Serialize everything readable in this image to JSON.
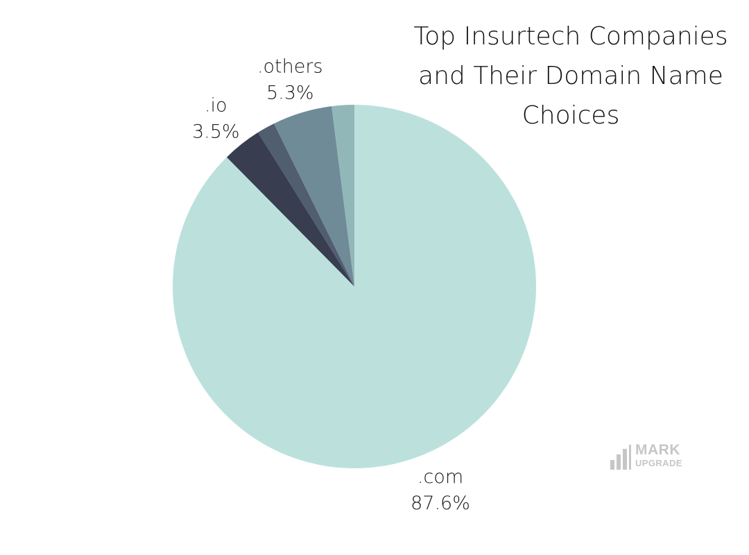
{
  "chart_data": {
    "type": "pie",
    "title_lines": [
      "Top Insurtech Companies",
      "and Their Domain Name",
      "Choices"
    ],
    "slices": [
      {
        "label": ".com",
        "value": 87.6,
        "value_text": "87.6%",
        "color": "#bce1dd",
        "show_label": true
      },
      {
        "label": ".io",
        "value": 3.5,
        "value_text": "3.5%",
        "color": "#383d50",
        "show_label": true
      },
      {
        "label": "",
        "value": 1.6,
        "value_text": "",
        "color": "#505e70",
        "show_label": false
      },
      {
        "label": ".others",
        "value": 5.3,
        "value_text": "5.3%",
        "color": "#6f8b97",
        "show_label": true
      },
      {
        "label": "",
        "value": 2.0,
        "value_text": "",
        "color": "#92b7b9",
        "show_label": false
      }
    ]
  },
  "watermark": {
    "line1": "MARK",
    "line2": "UPGRADE",
    "color": "#c6c6c6"
  }
}
